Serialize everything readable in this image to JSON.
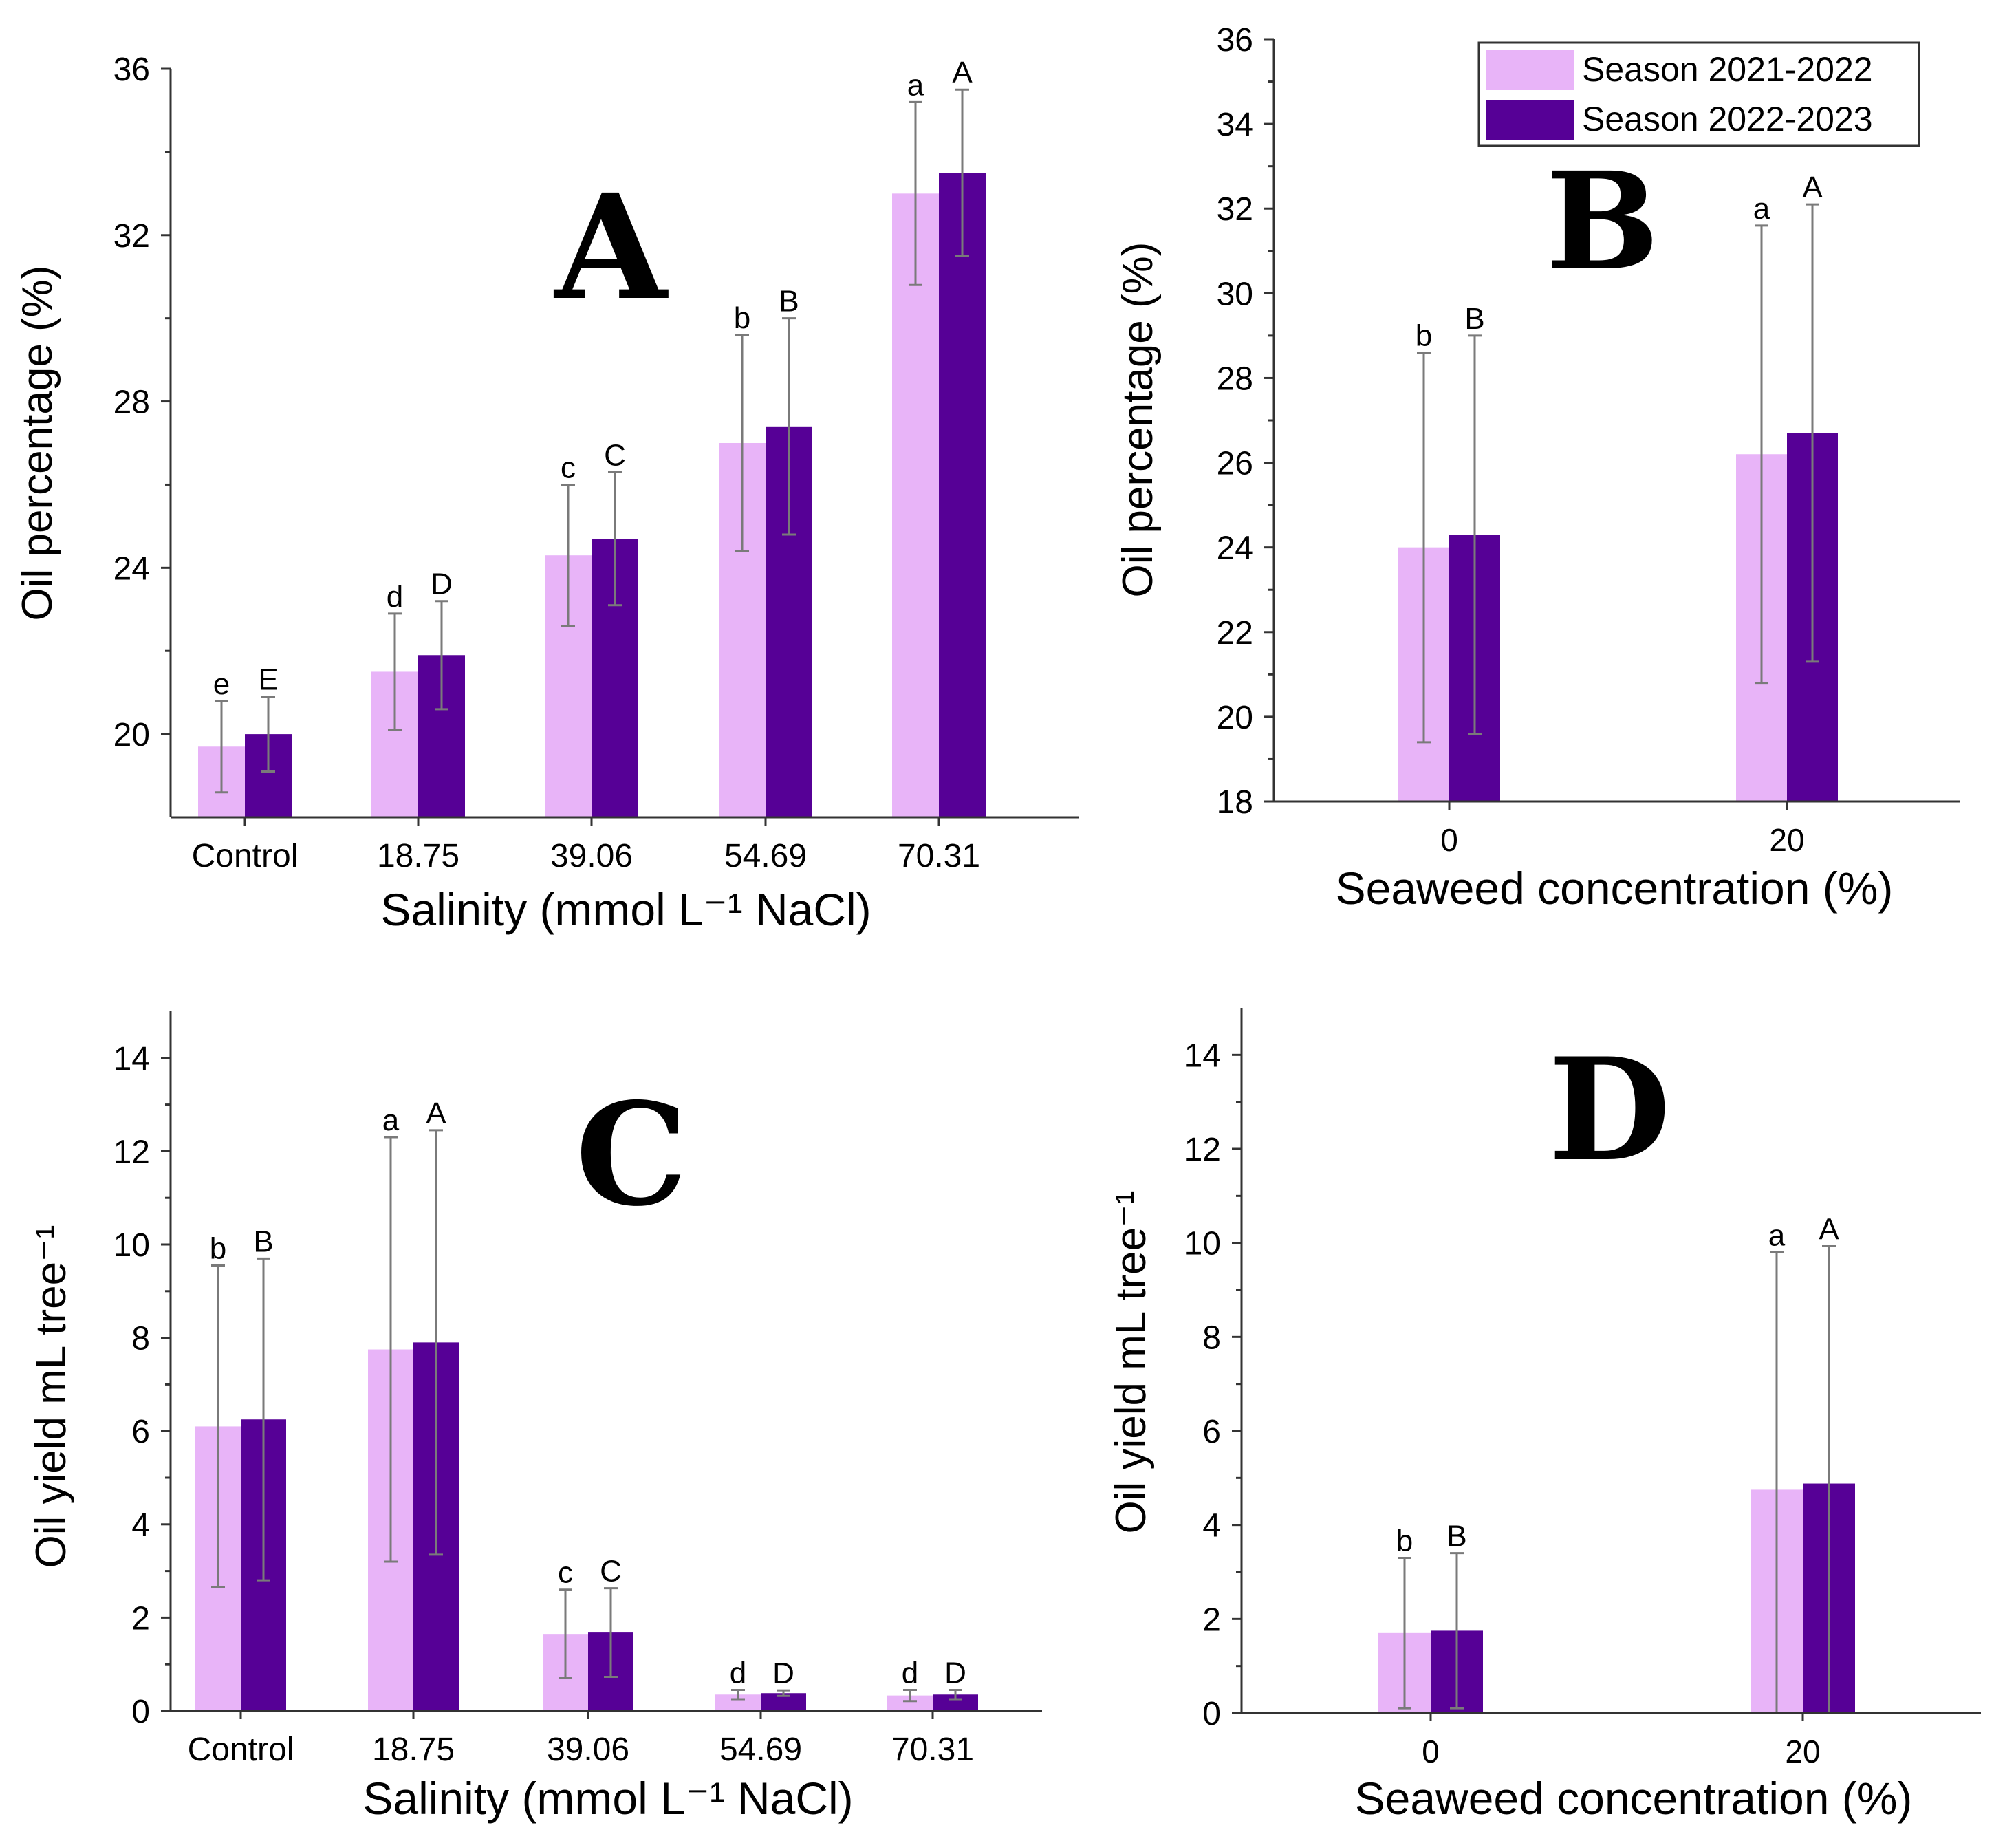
{
  "colors": {
    "season1": "#E8B4F8",
    "season2": "#560096"
  },
  "legend": {
    "items": [
      {
        "label": "Season 2021-2022",
        "color": "#E8B4F8"
      },
      {
        "label": "Season 2022-2023",
        "color": "#560096"
      }
    ]
  },
  "chart_data": [
    {
      "panel": "A",
      "type": "bar",
      "xlabel": "Salinity (mmol L⁻¹ NaCl)",
      "ylabel": "Oil percentage (%)",
      "ylim": [
        18,
        36
      ],
      "yticks": [
        20,
        24,
        28,
        32,
        36
      ],
      "categories": [
        "Control",
        "18.75",
        "39.06",
        "54.69",
        "70.31"
      ],
      "series": [
        {
          "name": "Season 2021-2022",
          "values": [
            19.7,
            21.5,
            24.3,
            27.0,
            33.0
          ],
          "errors": [
            1.1,
            1.4,
            1.7,
            2.6,
            2.2
          ],
          "labels": [
            "e",
            "d",
            "c",
            "b",
            "a"
          ]
        },
        {
          "name": "Season 2022-2023",
          "values": [
            20.0,
            21.9,
            24.7,
            27.4,
            33.5
          ],
          "errors": [
            0.9,
            1.3,
            1.6,
            2.6,
            2.0
          ],
          "labels": [
            "E",
            "D",
            "C",
            "B",
            "A"
          ]
        }
      ]
    },
    {
      "panel": "B",
      "type": "bar",
      "xlabel": "Seaweed concentration (%)",
      "ylabel": "Oil percentage (%)",
      "ylim": [
        18,
        36
      ],
      "yticks": [
        18,
        20,
        22,
        24,
        26,
        28,
        30,
        32,
        34,
        36
      ],
      "categories": [
        "0",
        "20"
      ],
      "legend_position": "top-right",
      "series": [
        {
          "name": "Season 2021-2022",
          "values": [
            24.0,
            26.2
          ],
          "errors": [
            4.6,
            5.4
          ],
          "labels": [
            "b",
            "a"
          ]
        },
        {
          "name": "Season 2022-2023",
          "values": [
            24.3,
            26.7
          ],
          "errors": [
            4.7,
            5.4
          ],
          "labels": [
            "B",
            "A"
          ]
        }
      ]
    },
    {
      "panel": "C",
      "type": "bar",
      "xlabel": "Salinity (mmol L⁻¹ NaCl)",
      "ylabel": "Oil yield mL tree⁻¹",
      "ylim": [
        0,
        15
      ],
      "yticks": [
        0,
        2,
        4,
        6,
        8,
        10,
        12,
        14
      ],
      "categories": [
        "Control",
        "18.75",
        "39.06",
        "54.69",
        "70.31"
      ],
      "series": [
        {
          "name": "Season 2021-2022",
          "values": [
            6.1,
            7.75,
            1.65,
            0.35,
            0.33
          ],
          "errors": [
            3.45,
            4.55,
            0.95,
            0.1,
            0.12
          ],
          "labels": [
            "b",
            "a",
            "c",
            "d",
            "d"
          ]
        },
        {
          "name": "Season 2022-2023",
          "values": [
            6.25,
            7.9,
            1.68,
            0.38,
            0.35
          ],
          "errors": [
            3.45,
            4.55,
            0.95,
            0.06,
            0.1
          ],
          "labels": [
            "B",
            "A",
            "C",
            "D",
            "D"
          ]
        }
      ]
    },
    {
      "panel": "D",
      "type": "bar",
      "xlabel": "Seaweed concentration (%)",
      "ylabel": "Oil yield mL tree⁻¹",
      "ylim": [
        0,
        15
      ],
      "yticks": [
        0,
        2,
        4,
        6,
        8,
        10,
        12,
        14
      ],
      "categories": [
        "0",
        "20"
      ],
      "series": [
        {
          "name": "Season 2021-2022",
          "values": [
            1.7,
            4.75
          ],
          "errors": [
            1.6,
            5.05
          ],
          "labels": [
            "b",
            "a"
          ]
        },
        {
          "name": "Season 2022-2023",
          "values": [
            1.75,
            4.88
          ],
          "errors": [
            1.65,
            5.05
          ],
          "labels": [
            "B",
            "A"
          ]
        }
      ]
    }
  ]
}
